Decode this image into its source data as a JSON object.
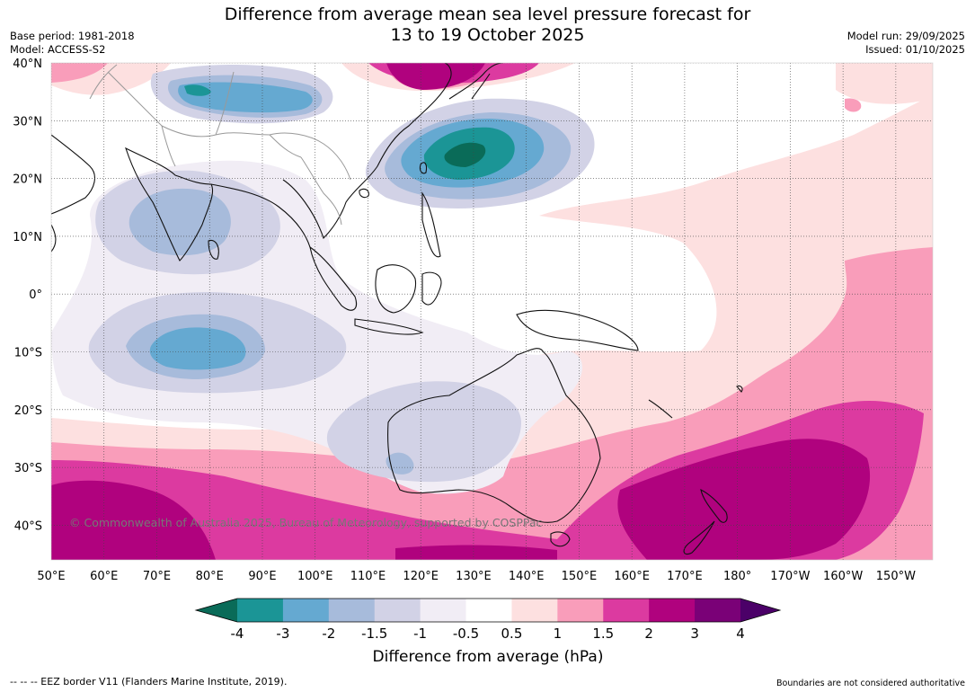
{
  "title_line1": "Difference from average mean sea level pressure forecast for",
  "title_line2": "13 to 19 October 2025",
  "base_period": "Base period: 1981-2018",
  "model": "Model: ACCESS-S2",
  "model_run": "Model run: 29/09/2025",
  "issued": "Issued: 01/10/2025",
  "copyright": "© Commonwealth of Australia 2025, Bureau of Meteorology, supported by COSPPac",
  "eez_legend": "--  --  -- EEZ border V11 (Flanders Marine Institute, 2019).",
  "boundaries_note": "Boundaries are not considered authoritative",
  "map": {
    "lon_range": [
      50,
      217
    ],
    "lat_range": [
      -46,
      40
    ],
    "lat_labels": [
      "40°N",
      "30°N",
      "20°N",
      "10°N",
      "0°",
      "10°S",
      "20°S",
      "30°S",
      "40°S"
    ],
    "lon_labels": [
      "50°E",
      "60°E",
      "70°E",
      "80°E",
      "90°E",
      "100°E",
      "110°E",
      "120°E",
      "130°E",
      "140°E",
      "150°E",
      "160°E",
      "170°E",
      "180°",
      "170°W",
      "160°W",
      "150°W"
    ]
  },
  "colorbar": {
    "label": "Difference from average (hPa)",
    "ticks": [
      "-4",
      "-3",
      "-2",
      "-1.5",
      "-1",
      "-0.5",
      "0.5",
      "1",
      "1.5",
      "2",
      "3",
      "4"
    ],
    "under_color": "#0a6b58",
    "over_color": "#4b0068",
    "colors": [
      "#1b9596",
      "#65a9d1",
      "#a7bbdb",
      "#d2d2e6",
      "#f1edf5",
      "#ffffff",
      "#fde0e0",
      "#f99dba",
      "#dc3aa0",
      "#b0027e",
      "#7a0177"
    ]
  }
}
